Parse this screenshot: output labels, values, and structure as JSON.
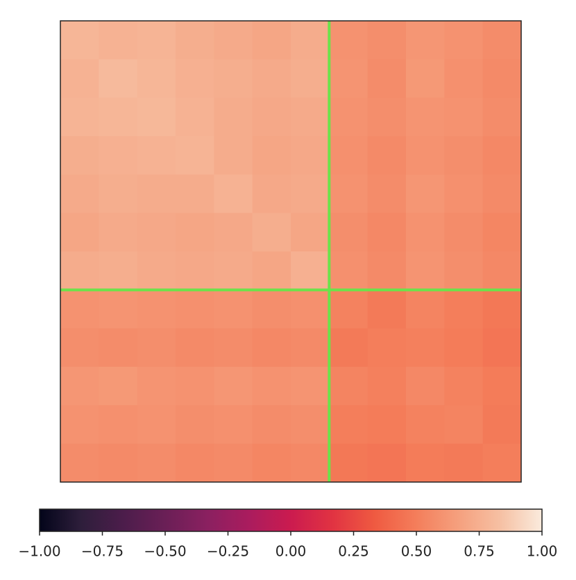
{
  "chart_data": {
    "type": "heatmap",
    "values": [
      [
        0.78,
        0.76,
        0.77,
        0.74,
        0.72,
        0.7,
        0.73,
        0.6,
        0.58,
        0.62,
        0.6,
        0.57
      ],
      [
        0.76,
        0.8,
        0.78,
        0.75,
        0.74,
        0.72,
        0.74,
        0.61,
        0.57,
        0.63,
        0.59,
        0.56
      ],
      [
        0.77,
        0.78,
        0.79,
        0.76,
        0.73,
        0.71,
        0.72,
        0.6,
        0.58,
        0.61,
        0.6,
        0.57
      ],
      [
        0.74,
        0.75,
        0.76,
        0.77,
        0.73,
        0.7,
        0.71,
        0.59,
        0.56,
        0.6,
        0.58,
        0.55
      ],
      [
        0.72,
        0.74,
        0.73,
        0.73,
        0.76,
        0.71,
        0.72,
        0.6,
        0.57,
        0.62,
        0.59,
        0.56
      ],
      [
        0.7,
        0.72,
        0.71,
        0.7,
        0.71,
        0.74,
        0.7,
        0.58,
        0.55,
        0.6,
        0.57,
        0.54
      ],
      [
        0.73,
        0.74,
        0.72,
        0.71,
        0.72,
        0.7,
        0.75,
        0.59,
        0.56,
        0.61,
        0.58,
        0.55
      ],
      [
        0.6,
        0.61,
        0.6,
        0.59,
        0.6,
        0.58,
        0.59,
        0.52,
        0.48,
        0.53,
        0.5,
        0.47
      ],
      [
        0.58,
        0.57,
        0.58,
        0.56,
        0.57,
        0.55,
        0.56,
        0.48,
        0.5,
        0.51,
        0.49,
        0.46
      ],
      [
        0.62,
        0.63,
        0.61,
        0.6,
        0.62,
        0.6,
        0.61,
        0.53,
        0.51,
        0.55,
        0.52,
        0.49
      ],
      [
        0.6,
        0.59,
        0.6,
        0.58,
        0.59,
        0.57,
        0.58,
        0.5,
        0.49,
        0.52,
        0.53,
        0.48
      ],
      [
        0.57,
        0.56,
        0.57,
        0.55,
        0.56,
        0.54,
        0.55,
        0.47,
        0.46,
        0.49,
        0.48,
        0.5
      ]
    ],
    "highlight": {
      "row": 7,
      "column": 7,
      "color": "#6be24a"
    },
    "colormap": [
      "#03051a",
      "#2e1e3b",
      "#4c1d4b",
      "#6a1f56",
      "#8a2060",
      "#aa1c5e",
      "#cb1b4f",
      "#e13342",
      "#ef5a41",
      "#f47e5b",
      "#f5a07e",
      "#f6c0a3",
      "#faebdd"
    ],
    "clim": [
      -1,
      1
    ],
    "cticks": [
      {
        "value": -1,
        "label": "−1.00"
      },
      {
        "value": -0.75,
        "label": "−0.75"
      },
      {
        "value": -0.5,
        "label": "−0.50"
      },
      {
        "value": -0.25,
        "label": "−0.25"
      },
      {
        "value": 0,
        "label": "0.00"
      },
      {
        "value": 0.25,
        "label": "0.25"
      },
      {
        "value": 0.5,
        "label": "0.50"
      },
      {
        "value": 0.75,
        "label": "0.75"
      },
      {
        "value": 1,
        "label": "1.00"
      }
    ]
  }
}
